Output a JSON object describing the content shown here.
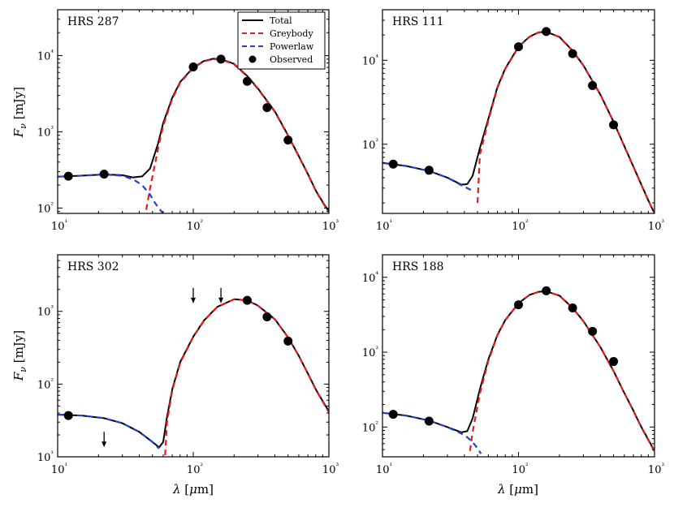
{
  "chart_data": {
    "type": "scatter",
    "xscale": "log",
    "yscale": "log",
    "xlabel": "λ [μm]",
    "ylabel": "F_ν [mJy]",
    "x_tick_values": [
      10,
      100,
      1000
    ],
    "x_tick_labels": [
      "10¹",
      "10²",
      "10³"
    ],
    "legend": {
      "location": "top-right",
      "entries": [
        {
          "label": "Total",
          "color": "#000000",
          "style": "solid"
        },
        {
          "label": "Greybody",
          "color": "#e41a1c",
          "style": "dashed"
        },
        {
          "label": "Powerlaw",
          "color": "#1f3fd6",
          "style": "dashed"
        },
        {
          "label": "Observed",
          "color": "#000000",
          "style": "marker"
        }
      ]
    },
    "panels": [
      {
        "title": "HRS 287",
        "xlim": [
          10,
          1000
        ],
        "ylim": [
          85,
          40000
        ],
        "y_tick_values": [
          100,
          1000,
          10000
        ],
        "y_tick_labels": [
          "10²",
          "10³",
          "10⁴"
        ],
        "observed_x": [
          12,
          22,
          100,
          160,
          250,
          350,
          500
        ],
        "observed_y": [
          262,
          278,
          7100,
          9000,
          4600,
          2080,
          780
        ],
        "upper_limits_x": [],
        "upper_limits_y": [],
        "total_x": [
          10,
          15,
          22,
          30,
          36,
          42,
          48,
          55,
          60,
          70,
          80,
          100,
          120,
          140,
          160,
          200,
          250,
          300,
          400,
          500,
          600,
          700,
          800,
          900,
          1000
        ],
        "total_y": [
          258,
          266,
          276,
          270,
          252,
          260,
          330,
          700,
          1300,
          2800,
          4500,
          7000,
          8500,
          9100,
          9000,
          7800,
          5400,
          3700,
          1850,
          900,
          480,
          280,
          170,
          120,
          90
        ],
        "greybody_x": [
          45,
          48,
          55,
          60,
          70,
          80,
          100,
          120,
          140,
          160,
          200,
          250,
          300,
          400,
          500,
          600,
          700,
          800,
          900,
          1000
        ],
        "greybody_y": [
          95,
          180,
          600,
          1200,
          2700,
          4400,
          6900,
          8400,
          9000,
          8900,
          7700,
          5300,
          3650,
          1820,
          890,
          475,
          278,
          168,
          118,
          88
        ],
        "powerlaw_x": [
          10,
          15,
          22,
          30,
          36,
          42,
          48,
          52,
          56,
          60
        ],
        "powerlaw_y": [
          258,
          266,
          276,
          265,
          238,
          200,
          150,
          118,
          98,
          85
        ]
      },
      {
        "title": "HRS 111",
        "xlim": [
          10,
          1000
        ],
        "ylim": [
          150,
          40000
        ],
        "y_tick_values": [
          1000,
          10000
        ],
        "y_tick_labels": [
          "10³",
          "10⁴"
        ],
        "observed_x": [
          12,
          22,
          100,
          160,
          250,
          350,
          500
        ],
        "observed_y": [
          580,
          490,
          14500,
          22000,
          12000,
          5000,
          1700
        ],
        "upper_limits_x": [],
        "upper_limits_y": [],
        "total_x": [
          10,
          15,
          22,
          30,
          38,
          42,
          46,
          52,
          60,
          70,
          80,
          100,
          120,
          140,
          160,
          200,
          250,
          300,
          400,
          500,
          600,
          700,
          800,
          900,
          1000
        ],
        "total_y": [
          600,
          550,
          480,
          400,
          330,
          335,
          420,
          900,
          2000,
          4800,
          8000,
          14500,
          19000,
          21500,
          21800,
          19000,
          13000,
          8700,
          3900,
          1850,
          950,
          540,
          330,
          215,
          150
        ],
        "greybody_x": [
          50,
          52,
          60,
          70,
          80,
          100,
          120,
          140,
          160,
          200,
          250,
          300,
          400,
          500,
          600,
          700,
          800,
          900,
          1000
        ],
        "greybody_y": [
          200,
          750,
          1900,
          4700,
          7900,
          14400,
          18900,
          21400,
          21700,
          18900,
          12900,
          8650,
          3880,
          1840,
          945,
          538,
          328,
          213,
          150
        ],
        "powerlaw_x": [
          10,
          15,
          22,
          30,
          38,
          42,
          46
        ],
        "powerlaw_y": [
          600,
          550,
          480,
          400,
          325,
          300,
          280
        ]
      },
      {
        "title": "HRS 302",
        "xlim": [
          10,
          1000
        ],
        "ylim": [
          10,
          6000
        ],
        "y_tick_values": [
          10,
          100,
          1000
        ],
        "y_tick_labels": [
          "10¹",
          "10²",
          "10³"
        ],
        "observed_x": [
          12,
          250,
          350,
          500
        ],
        "observed_y": [
          37,
          1420,
          840,
          390
        ],
        "upper_limits_x": [
          22,
          100,
          160
        ],
        "upper_limits_y": [
          22,
          2100,
          2100
        ],
        "total_x": [
          10,
          15,
          22,
          30,
          40,
          50,
          56,
          60,
          64,
          70,
          80,
          100,
          120,
          150,
          200,
          250,
          300,
          400,
          500,
          600,
          700,
          800,
          1000
        ],
        "total_y": [
          38,
          37,
          34,
          29,
          22,
          16,
          13.5,
          16,
          35,
          85,
          200,
          450,
          750,
          1150,
          1470,
          1420,
          1200,
          780,
          440,
          245,
          140,
          85,
          42
        ],
        "greybody_x": [
          62,
          64,
          70,
          80,
          100,
          120,
          150,
          200,
          250,
          300,
          400,
          500,
          600,
          700,
          800,
          1000
        ],
        "greybody_y": [
          10.5,
          30,
          82,
          195,
          445,
          745,
          1145,
          1465,
          1415,
          1195,
          775,
          438,
          243,
          139,
          84,
          41
        ],
        "powerlaw_x": [
          10,
          15,
          22,
          30,
          40,
          50,
          56
        ],
        "powerlaw_y": [
          38,
          37,
          34,
          29,
          22,
          16,
          13
        ]
      },
      {
        "title": "HRS 188",
        "xlim": [
          10,
          1000
        ],
        "ylim": [
          40,
          20000
        ],
        "y_tick_values": [
          100,
          1000,
          10000
        ],
        "y_tick_labels": [
          "10²",
          "10³",
          "10⁴"
        ],
        "observed_x": [
          12,
          22,
          100,
          160,
          250,
          350,
          500
        ],
        "observed_y": [
          148,
          120,
          4300,
          6600,
          3900,
          1900,
          750
        ],
        "upper_limits_x": [],
        "upper_limits_y": [],
        "total_x": [
          10,
          15,
          22,
          30,
          38,
          42,
          46,
          52,
          60,
          70,
          80,
          100,
          120,
          140,
          160,
          200,
          250,
          300,
          400,
          500,
          600,
          700,
          800,
          900,
          1000
        ],
        "total_y": [
          155,
          142,
          122,
          100,
          85,
          88,
          130,
          320,
          800,
          1700,
          2700,
          4500,
          5800,
          6400,
          6500,
          5700,
          3900,
          2600,
          1170,
          560,
          285,
          165,
          100,
          68,
          48
        ],
        "greybody_x": [
          44,
          46,
          52,
          60,
          70,
          80,
          100,
          120,
          140,
          160,
          200,
          250,
          300,
          400,
          500,
          600,
          700,
          800,
          900,
          1000
        ],
        "greybody_y": [
          48,
          85,
          280,
          760,
          1680,
          2680,
          4480,
          5780,
          6380,
          6480,
          5680,
          3880,
          2590,
          1165,
          558,
          284,
          164,
          99,
          67,
          47
        ],
        "powerlaw_x": [
          10,
          15,
          22,
          30,
          38,
          42,
          46,
          50,
          53
        ],
        "powerlaw_y": [
          155,
          142,
          122,
          100,
          82,
          73,
          63,
          52,
          44
        ]
      }
    ]
  }
}
